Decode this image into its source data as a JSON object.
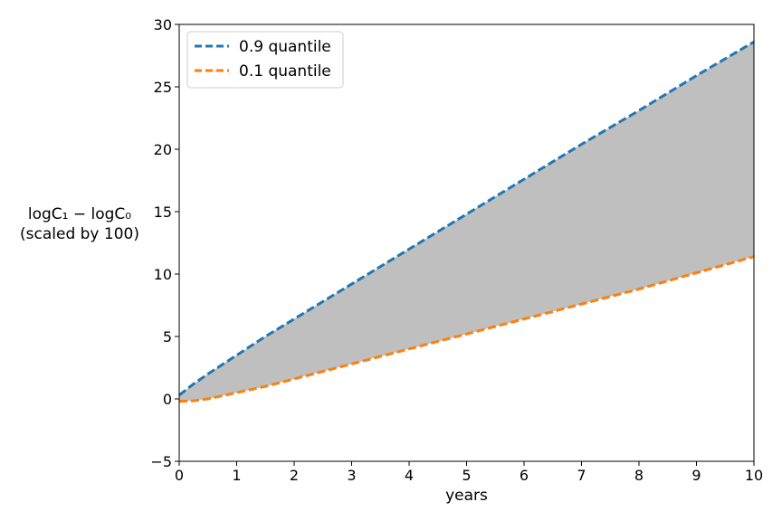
{
  "chart_data": {
    "type": "line",
    "title": "",
    "xlabel": "years",
    "ylabel_line1": "logC₁ − logC₀",
    "ylabel_line2": "(scaled by 100)",
    "xlim": [
      0,
      10
    ],
    "ylim": [
      -5,
      30
    ],
    "xticks": [
      0,
      1,
      2,
      3,
      4,
      5,
      6,
      7,
      8,
      9,
      10
    ],
    "yticks": [
      -5,
      0,
      5,
      10,
      15,
      20,
      25,
      30
    ],
    "ytick_labels": [
      "−5",
      "0",
      "5",
      "10",
      "15",
      "20",
      "25",
      "30"
    ],
    "legend_position": "upper-left",
    "fill_between": {
      "upper_series": 0,
      "lower_series": 1,
      "color": "#bfbfbf"
    },
    "x": [
      0,
      0.25,
      0.5,
      1,
      1.5,
      2,
      3,
      4,
      5,
      6,
      7,
      8,
      9,
      10
    ],
    "series": [
      {
        "name": "0.9 quantile",
        "color": "#1f77b4",
        "values": [
          0.3,
          1.2,
          2.0,
          3.5,
          5.0,
          6.4,
          9.2,
          12.0,
          14.8,
          17.6,
          20.4,
          23.1,
          25.9,
          28.6
        ]
      },
      {
        "name": "0.1 quantile",
        "color": "#ff7f0e",
        "values": [
          -0.2,
          -0.15,
          0.0,
          0.5,
          1.0,
          1.6,
          2.8,
          4.0,
          5.2,
          6.4,
          7.6,
          8.8,
          10.1,
          11.4
        ]
      }
    ]
  }
}
